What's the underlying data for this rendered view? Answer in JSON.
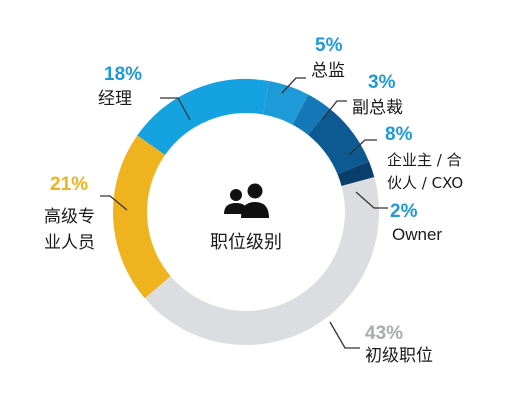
{
  "chart_data": {
    "type": "pie",
    "variant": "donut",
    "center_label": "职位级别",
    "center_icon": "users-icon",
    "slices": [
      {
        "label": "总监",
        "value": 5,
        "display": "5%",
        "color": "#1f9ad9",
        "pct_color": "#1f9ad9"
      },
      {
        "label": "副总裁",
        "value": 3,
        "display": "3%",
        "color": "#1477b8",
        "pct_color": "#1f9ad9"
      },
      {
        "label_lines": [
          "企业主 / 合",
          "伙人 / CXO"
        ],
        "value": 8,
        "display": "8%",
        "color": "#0d5a92",
        "pct_color": "#1f9ad9"
      },
      {
        "label": "Owner",
        "value": 2,
        "display": "2%",
        "color": "#0a3f6b",
        "pct_color": "#1f9ad9"
      },
      {
        "label": "初级职位",
        "value": 43,
        "display": "43%",
        "color": "#dcdde0",
        "pct_color": "#a9abae"
      },
      {
        "label_lines": [
          "高级专",
          "业人员"
        ],
        "value": 21,
        "display": "21%",
        "color": "#eeb31e",
        "pct_color": "#eeb31e"
      },
      {
        "label": "经理",
        "value": 18,
        "display": "18%",
        "color": "#15a2e0",
        "pct_color": "#1f9ad9"
      }
    ]
  }
}
